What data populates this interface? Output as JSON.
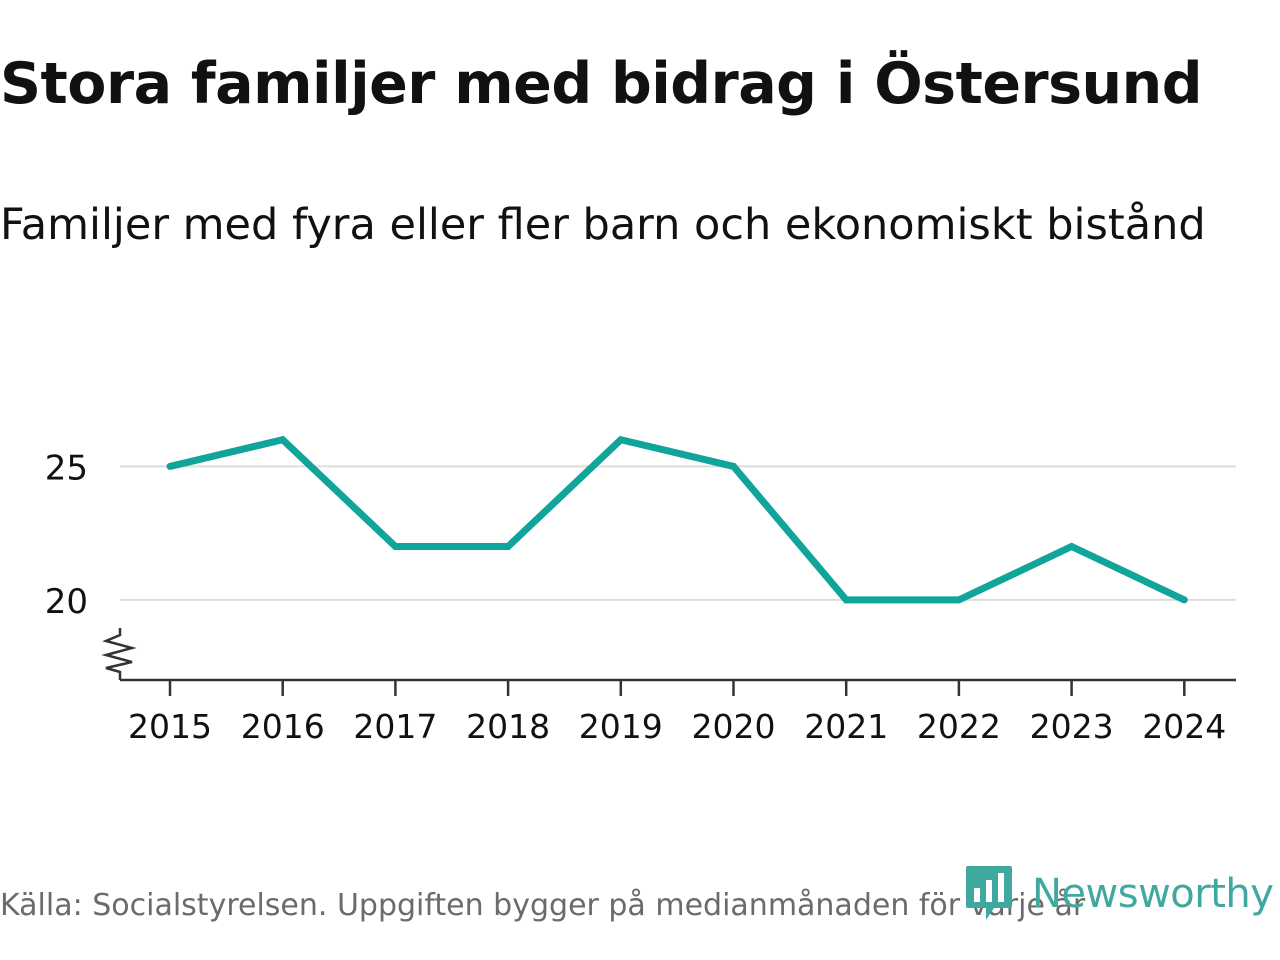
{
  "header": {
    "title": "Stora familjer med bidrag i Östersund",
    "subtitle": "Familjer med fyra eller fler barn och ekonomiskt bistånd"
  },
  "footer": {
    "source": "Källa: Socialstyrelsen. Uppgiften bygger på medianmånaden för varje år",
    "brand": "Newsworthy"
  },
  "colors": {
    "line": "#10a49a",
    "grid": "#dddddd",
    "axis": "#333333",
    "text": "#111111",
    "muted": "#6b6b6b",
    "brand": "#3fa89f"
  },
  "chart_data": {
    "type": "line",
    "title": "Stora familjer med bidrag i Östersund",
    "subtitle": "Familjer med fyra eller fler barn och ekonomiskt bistånd",
    "xlabel": "",
    "ylabel": "",
    "categories": [
      "2015",
      "2016",
      "2017",
      "2018",
      "2019",
      "2020",
      "2021",
      "2022",
      "2023",
      "2024"
    ],
    "series": [
      {
        "name": "Familjer med fyra eller fler barn och ekonomiskt bistånd",
        "values": [
          25,
          26,
          22,
          22,
          26,
          25,
          20,
          20,
          22,
          20
        ]
      }
    ],
    "yticks": [
      20,
      25
    ],
    "ylim": [
      17,
      27.3
    ],
    "axis_break": true,
    "grid": true,
    "legend": "none"
  }
}
